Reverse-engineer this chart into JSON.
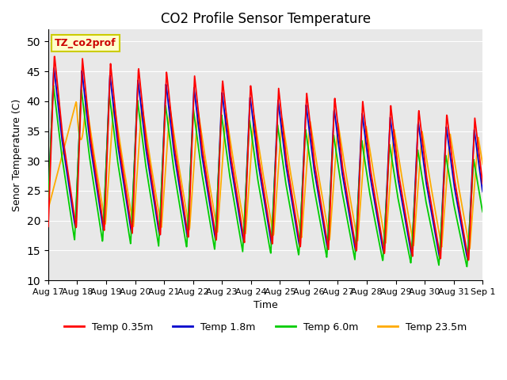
{
  "title": "CO2 Profile Sensor Temperature",
  "ylabel": "Senor Temperature (C)",
  "xlabel": "Time",
  "ylim": [
    10,
    52
  ],
  "yticks": [
    10,
    15,
    20,
    25,
    30,
    35,
    40,
    45,
    50
  ],
  "background_color": "#e8e8e8",
  "legend_label": "TZ_co2prof",
  "series_labels": [
    "Temp 0.35m",
    "Temp 1.8m",
    "Temp 6.0m",
    "Temp 23.5m"
  ],
  "series_colors": [
    "#ff0000",
    "#0000cc",
    "#00cc00",
    "#ffaa00"
  ],
  "x_tick_labels": [
    "Aug 17",
    "Aug 18",
    "Aug 19",
    "Aug 20",
    "Aug 21",
    "Aug 22",
    "Aug 23",
    "Aug 24",
    "Aug 25",
    "Aug 26",
    "Aug 27",
    "Aug 28",
    "Aug 29",
    "Aug 30",
    "Aug 31",
    "Sep 1"
  ],
  "n_days": 15.5,
  "n_pts": 1500,
  "figsize": [
    6.4,
    4.8
  ],
  "dpi": 100,
  "annotation_fontsize": 9,
  "annotation_color": "#cc0000",
  "annotation_facecolor": "#ffffcc",
  "annotation_edgecolor": "#cccc00",
  "title_fontsize": 12,
  "axis_fontsize": 9,
  "tick_fontsize": 8,
  "legend_fontsize": 9,
  "line_width": 1.3
}
